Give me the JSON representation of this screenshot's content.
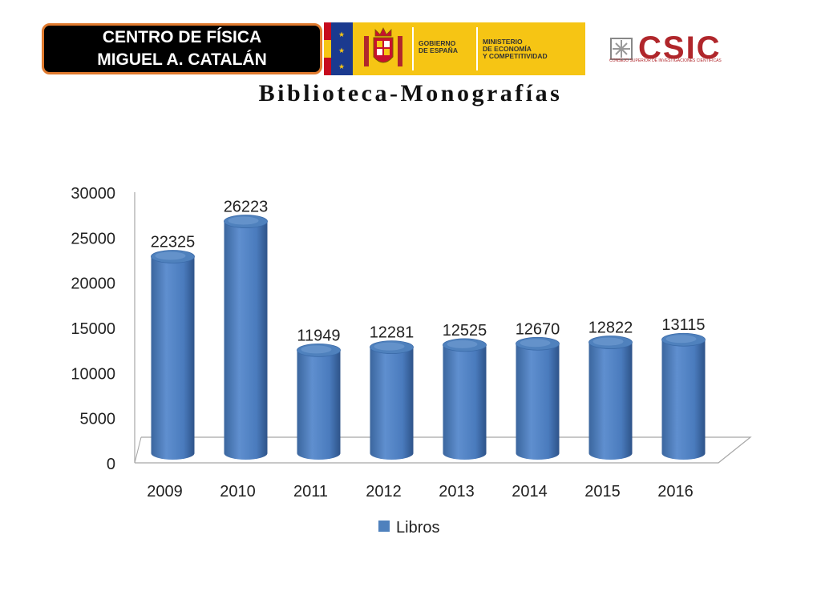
{
  "header": {
    "center_line1": "CENTRO DE FÍSICA",
    "center_line2": "MIGUEL A. CATALÁN",
    "gov_line1": "GOBIERNO",
    "gov_line2": "DE ESPAÑA",
    "ministry_line1": "MINISTERIO",
    "ministry_line2": "DE ECONOMÍA",
    "ministry_line3": "Y COMPETITIVIDAD",
    "csic_logo": "CSIC",
    "csic_subtitle": "CONSEJO SUPERIOR DE INVESTIGACIONES CIENTÍFICAS"
  },
  "page_title": "Biblioteca-Monografías",
  "chart_data": {
    "type": "bar",
    "categories": [
      "2009",
      "2010",
      "2011",
      "2012",
      "2013",
      "2014",
      "2015",
      "2016"
    ],
    "series": [
      {
        "name": "Libros",
        "values": [
          22325,
          26223,
          11949,
          12281,
          12525,
          12670,
          12822,
          13115
        ]
      }
    ],
    "data_labels": [
      "22325",
      "26223",
      "11949",
      "12281",
      "12525",
      "12670",
      "12822",
      "13115"
    ],
    "y_ticks": [
      "0",
      "5000",
      "10000",
      "15000",
      "20000",
      "25000",
      "30000"
    ],
    "ylim": [
      0,
      30000
    ],
    "legend_position": "bottom",
    "grid": false,
    "style": "3d-cylinder",
    "colors": {
      "bar": "#4f81bd",
      "bar_dark": "#2c5487",
      "bar_light": "#8db3e2",
      "axis": "#a6a6a6"
    }
  }
}
